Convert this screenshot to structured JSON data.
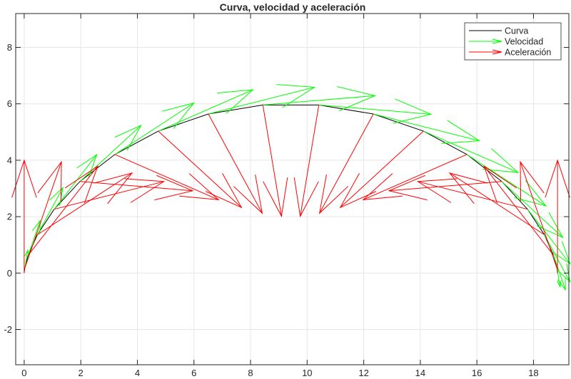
{
  "chart_data": {
    "type": "line",
    "subtype": "quiver",
    "title": "Curva, velocidad y aceleración",
    "xlabel": "",
    "ylabel": "",
    "xlim": [
      -0.3,
      19.25
    ],
    "ylim": [
      -3.25,
      9.2
    ],
    "xticks": [
      0,
      2,
      4,
      6,
      8,
      10,
      12,
      14,
      16,
      18
    ],
    "yticks": [
      -2,
      0,
      2,
      4,
      6,
      8
    ],
    "grid": true,
    "legend_position": "northeast",
    "legend": [
      "Curva",
      "Velocidad",
      "Aceleración"
    ],
    "colors": {
      "curve": "#000000",
      "velocity": "#00ff00",
      "acceleration": "#ff0000"
    },
    "velocity_scale": 0.665,
    "acceleration_scale": 1.333,
    "x": [
      0,
      0.01797,
      0.14154,
      0.46473,
      1.06014,
      1.97067,
      3.2052,
      4.73742,
      6.50883,
      8.43498,
      10.41459,
      12.34077,
      14.11215,
      15.6444,
      16.8789,
      17.78943,
      18.38484,
      18.70803,
      18.8316,
      18.84956
    ],
    "y": [
      0,
      0.16254,
      0.63258,
      1.35915,
      2.26353,
      3.24774,
      4.2051,
      5.03184,
      5.63841,
      5.95908,
      5.95908,
      5.63841,
      5.03184,
      4.2051,
      3.24774,
      2.26353,
      1.35915,
      0.63258,
      0.16254,
      0
    ],
    "vx": [
      0,
      0.16254,
      0.63258,
      1.35915,
      2.26353,
      3.24774,
      4.2051,
      5.03184,
      5.63841,
      5.95908,
      5.95908,
      5.63841,
      5.03184,
      4.2051,
      3.24774,
      2.26353,
      1.35915,
      0.63258,
      0.16254,
      0
    ],
    "vy": [
      0,
      0.9741,
      1.84263,
      2.51151,
      2.9082,
      2.98974,
      2.74731,
      2.20716,
      1.42785,
      0.49377,
      -0.49377,
      -1.42785,
      -2.20716,
      -2.74731,
      -2.98974,
      -2.9082,
      -2.51151,
      -1.84263,
      -0.9741,
      0
    ],
    "ax": [
      0,
      0.9741,
      1.84263,
      2.51151,
      2.9082,
      2.98974,
      2.74731,
      2.20716,
      1.42785,
      0.49377,
      -0.49377,
      -1.42785,
      -2.20716,
      -2.74731,
      -2.98974,
      -2.9082,
      -2.51151,
      -1.84263,
      -0.9741,
      0
    ],
    "ay": [
      3,
      2.83746,
      2.36742,
      1.64085,
      0.73647,
      -0.24774,
      -1.2051,
      -2.03184,
      -2.63841,
      -2.95908,
      -2.95908,
      -2.63841,
      -2.03184,
      -1.2051,
      -0.24774,
      0.73647,
      1.64085,
      2.36742,
      2.83746,
      3
    ]
  },
  "axes": {
    "x_tick_labels": [
      "0",
      "2",
      "4",
      "6",
      "8",
      "10",
      "12",
      "14",
      "16",
      "18"
    ],
    "y_tick_labels": [
      "-2",
      "0",
      "2",
      "4",
      "6",
      "8"
    ]
  },
  "legend": {
    "items": [
      {
        "label": "Curva",
        "color": "#000000",
        "kind": "line"
      },
      {
        "label": "Velocidad",
        "color": "#00ff00",
        "kind": "arrow"
      },
      {
        "label": "Aceleración",
        "color": "#ff0000",
        "kind": "arrow"
      }
    ]
  }
}
